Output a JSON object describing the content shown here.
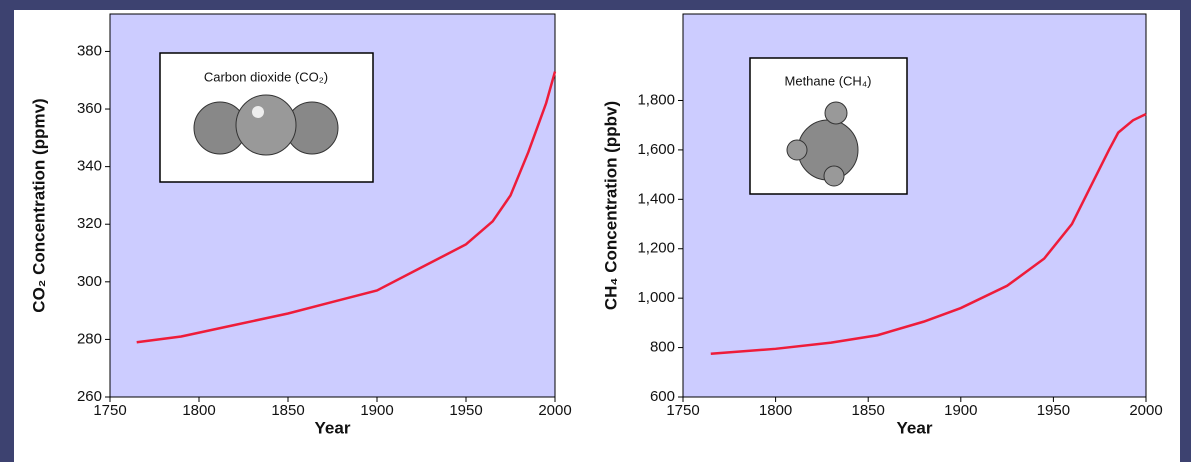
{
  "chart_data": [
    {
      "type": "line",
      "annotation": "Carbon dioxide (CO₂)",
      "xlabel": "Year",
      "ylabel": "CO₂ Concentration (ppmv)",
      "x": [
        1765,
        1790,
        1820,
        1850,
        1875,
        1900,
        1925,
        1950,
        1965,
        1975,
        1985,
        1995,
        2000
      ],
      "values": [
        279,
        281,
        285,
        289,
        293,
        297,
        305,
        313,
        321,
        330,
        345,
        362,
        373
      ],
      "color": "#ee1c3a",
      "xlim": [
        1750,
        2000
      ],
      "xticks": [
        1750,
        1800,
        1850,
        1900,
        1950,
        2000
      ],
      "ylim": [
        260,
        393
      ],
      "yticks": [
        260,
        280,
        300,
        320,
        340,
        360,
        380
      ]
    },
    {
      "type": "line",
      "annotation": "Methane (CH₄)",
      "xlabel": "Year",
      "ylabel": "CH₄ Concentration (ppbv)",
      "x": [
        1765,
        1800,
        1830,
        1855,
        1880,
        1900,
        1925,
        1945,
        1960,
        1970,
        1980,
        1985,
        1993,
        2000
      ],
      "values": [
        775,
        795,
        820,
        850,
        905,
        960,
        1050,
        1160,
        1300,
        1450,
        1600,
        1670,
        1720,
        1745
      ],
      "color": "#ee1c3a",
      "xlim": [
        1750,
        2000
      ],
      "xticks": [
        1750,
        1800,
        1850,
        1900,
        1950,
        2000
      ],
      "ylim": [
        600,
        2150
      ],
      "yticks": [
        600,
        {
          "value": 800,
          "label": "800"
        },
        {
          "value": 1000,
          "label": "1,000"
        },
        {
          "value": 1200,
          "label": "1,200"
        },
        {
          "value": 1400,
          "label": "1,400"
        },
        {
          "value": 1600,
          "label": "1,600"
        },
        {
          "value": 1800,
          "label": "1,800"
        }
      ]
    }
  ]
}
